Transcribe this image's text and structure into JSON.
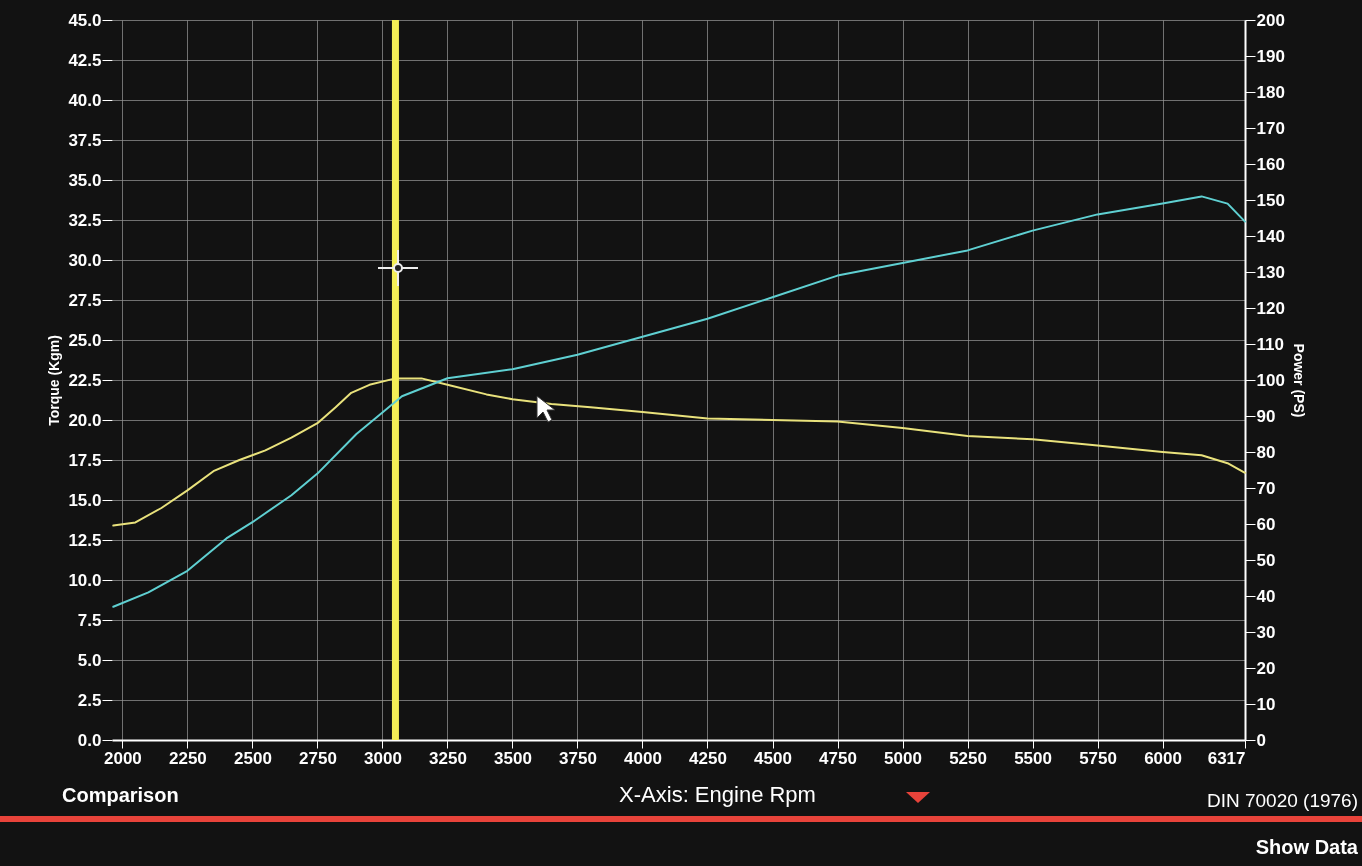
{
  "chart_data": {
    "type": "line",
    "xlabel": "X-Axis: Engine Rpm",
    "ylabel": "Torque (Kgm)",
    "y2label": "Power (PS)",
    "x": [
      1965,
      2050,
      2150,
      2250,
      2350,
      2450,
      2550,
      2650,
      2750,
      2820,
      2880,
      2950,
      3050,
      3150,
      3250,
      3400,
      3500,
      3650,
      3800,
      4000,
      4250,
      4500,
      4750,
      5000,
      5250,
      5500,
      5750,
      6000,
      6150,
      6250,
      6317
    ],
    "series": [
      {
        "color": "#e9e27c",
        "values": [
          13.4,
          13.6,
          14.5,
          15.6,
          16.8,
          17.5,
          18.1,
          18.9,
          19.8,
          20.8,
          21.7,
          22.2,
          22.6,
          22.6,
          22.2,
          21.6,
          21.3,
          21.0,
          20.8,
          20.5,
          20.1,
          20.0,
          19.9,
          19.5,
          19.0,
          18.8,
          18.4,
          18.0,
          17.8,
          17.3,
          16.7
        ]
      },
      {
        "color": "#5fd0d2",
        "axis": "y2",
        "x": [
          1965,
          2100,
          2250,
          2400,
          2500,
          2650,
          2750,
          2900,
          3000,
          3075,
          3250,
          3500,
          3750,
          4000,
          4250,
          4500,
          4750,
          5000,
          5250,
          5500,
          5750,
          6000,
          6150,
          6250,
          6317
        ],
        "values": [
          37,
          41,
          47,
          56,
          60.5,
          68,
          74,
          85,
          91,
          95.5,
          100.5,
          103,
          107,
          112,
          117,
          123,
          129,
          132.5,
          136,
          141.5,
          146,
          149,
          151,
          149,
          144
        ]
      }
    ],
    "xlim": [
      1960,
      6317
    ],
    "xticks": [
      2000,
      2250,
      2500,
      2750,
      3000,
      3250,
      3500,
      3750,
      4000,
      4250,
      4500,
      4750,
      5000,
      5250,
      5500,
      5750,
      6000,
      6317
    ],
    "ylim": [
      0,
      45
    ],
    "yticks": [
      {
        "value": 0,
        "label": "0.0"
      },
      2.5,
      {
        "value": 5,
        "label": "5.0"
      },
      7.5,
      {
        "value": 10,
        "label": "10.0"
      },
      12.5,
      {
        "value": 15,
        "label": "15.0"
      },
      17.5,
      {
        "value": 20,
        "label": "20.0"
      },
      22.5,
      {
        "value": 25,
        "label": "25.0"
      },
      27.5,
      {
        "value": 30,
        "label": "30.0"
      },
      32.5,
      {
        "value": 35,
        "label": "35.0"
      },
      37.5,
      {
        "value": 40,
        "label": "40.0"
      },
      42.5,
      {
        "value": 45,
        "label": "45.0"
      }
    ],
    "y2lim": [
      0,
      200
    ],
    "y2ticks": [
      0,
      10,
      20,
      30,
      40,
      50,
      60,
      70,
      80,
      90,
      100,
      110,
      120,
      130,
      140,
      150,
      160,
      170,
      180,
      190,
      200
    ],
    "ref_lines": [
      {
        "axis": "x",
        "value": 3050,
        "color": "#f4ee56"
      }
    ],
    "grid": true,
    "annotations": [
      "Comparison",
      "DIN 70020 (1976)",
      "Show Data"
    ]
  }
}
